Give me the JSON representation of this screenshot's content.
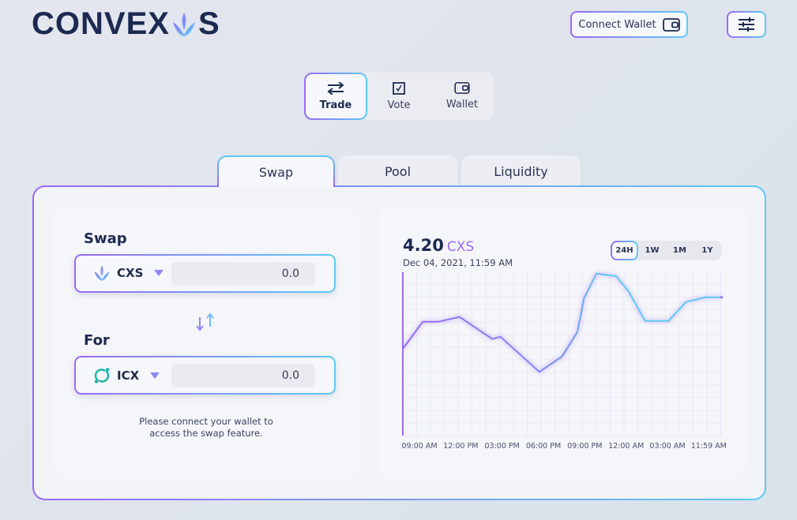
{
  "brand": {
    "name": "CONVEXUS",
    "logo_left": "CONVEX",
    "logo_right": "S"
  },
  "header": {
    "connect_wallet": "Connect Wallet",
    "wallet_icon": "wallet-icon",
    "settings_icon": "sliders-icon"
  },
  "nav": {
    "items": [
      {
        "label": "Trade",
        "icon": "swap-arrows-icon",
        "active": true
      },
      {
        "label": "Vote",
        "icon": "ballot-check-icon"
      },
      {
        "label": "Wallet",
        "icon": "wallet-icon"
      }
    ]
  },
  "tabs": [
    {
      "label": "Swap",
      "active": true
    },
    {
      "label": "Pool"
    },
    {
      "label": "Liquidity"
    }
  ],
  "swap": {
    "from_label": "Swap",
    "from_token": "CXS",
    "from_amount": "0.0",
    "to_label": "For",
    "to_token": "ICX",
    "to_amount": "0.0",
    "message": "Please connect your wallet to access the swap feature."
  },
  "price": {
    "value": "4.20",
    "unit": "CXS",
    "timestamp": "Dec 04, 2021, 11:59 AM"
  },
  "timeframes": [
    {
      "label": "24H",
      "active": true
    },
    {
      "label": "1W"
    },
    {
      "label": "1M"
    },
    {
      "label": "1Y"
    }
  ],
  "colors": {
    "accent_purple": "#9a6af4",
    "accent_cyan": "#5ccaf6",
    "text_dark": "#1c2a52"
  },
  "chart_data": {
    "type": "line",
    "title": "",
    "xlabel": "",
    "ylabel": "",
    "x_tick_labels": [
      "09:00 AM",
      "12:00 PM",
      "03:00 PM",
      "06:00 PM",
      "09:00 PM",
      "12:00 AM",
      "03:00 AM",
      "11:59 AM"
    ],
    "ylim": [
      0,
      100
    ],
    "grid": true,
    "legend": "none",
    "points": [
      [
        -0.4,
        53.2
      ],
      [
        0.08,
        69.7
      ],
      [
        0.46,
        69.7
      ],
      [
        0.97,
        72.6
      ],
      [
        1.76,
        59.2
      ],
      [
        1.96,
        60.5
      ],
      [
        2.9,
        39.0
      ],
      [
        3.45,
        48.4
      ],
      [
        3.82,
        63.4
      ],
      [
        3.98,
        83.9
      ],
      [
        4.28,
        99.2
      ],
      [
        4.76,
        97.6
      ],
      [
        5.06,
        88.2
      ],
      [
        5.46,
        70.2
      ],
      [
        6.03,
        70.2
      ],
      [
        6.45,
        81.8
      ],
      [
        6.92,
        84.7
      ],
      [
        7.31,
        84.7
      ]
    ]
  }
}
